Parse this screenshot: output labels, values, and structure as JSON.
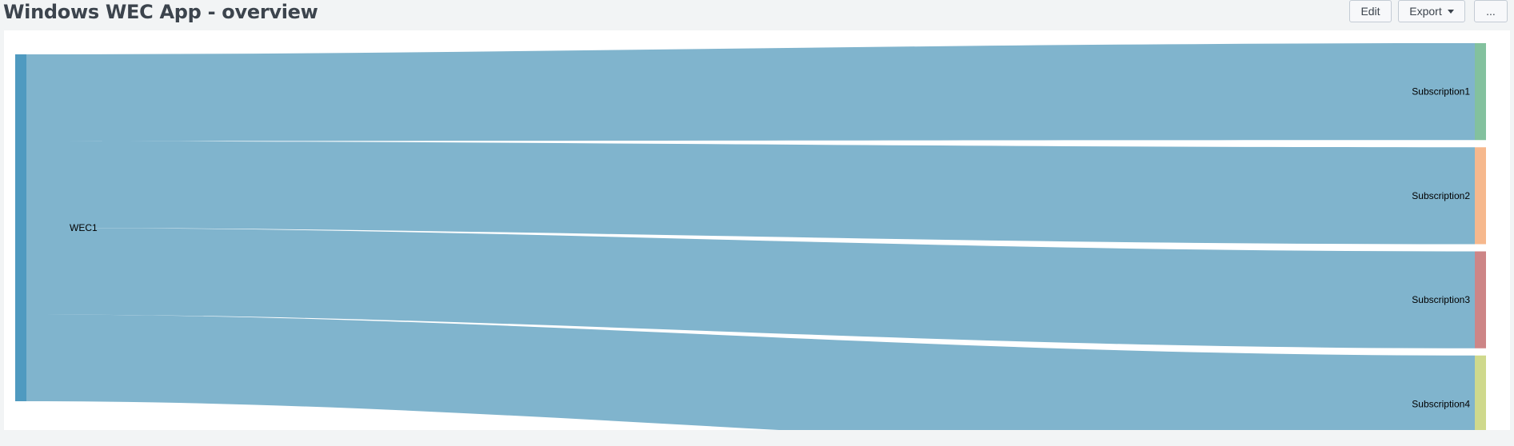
{
  "header": {
    "title": "Windows WEC App - overview",
    "edit_label": "Edit",
    "export_label": "Export",
    "more_label": "..."
  },
  "chart_data": {
    "type": "sankey",
    "source": {
      "name": "WEC1",
      "color": "#4f9ac0"
    },
    "link_color": "#80b4cd",
    "targets": [
      {
        "name": "Subscription1",
        "color": "#83c19e"
      },
      {
        "name": "Subscription2",
        "color": "#f6b88d"
      },
      {
        "name": "Subscription3",
        "color": "#cd8586"
      },
      {
        "name": "Subscription4",
        "color": "#cfd98c"
      }
    ],
    "links": [
      {
        "source": "WEC1",
        "target": "Subscription1",
        "value": 1
      },
      {
        "source": "WEC1",
        "target": "Subscription2",
        "value": 1
      },
      {
        "source": "WEC1",
        "target": "Subscription3",
        "value": 1
      },
      {
        "source": "WEC1",
        "target": "Subscription4",
        "value": 1
      }
    ]
  }
}
